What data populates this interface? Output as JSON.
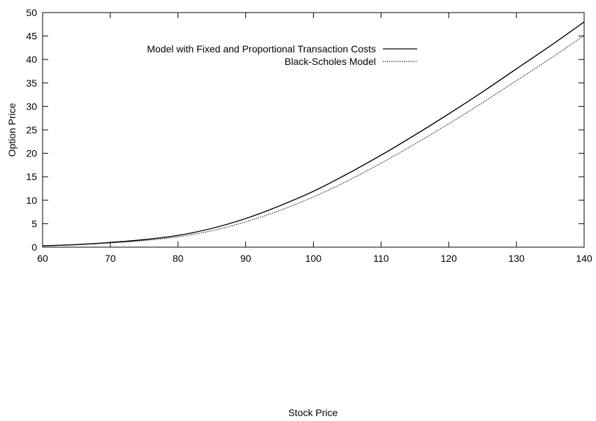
{
  "chart_data": {
    "type": "line",
    "xlabel": "Stock Price",
    "ylabel": "Option Price",
    "xlim": [
      60,
      140
    ],
    "ylim": [
      0,
      50
    ],
    "xticks": [
      60,
      70,
      80,
      90,
      100,
      110,
      120,
      130,
      140
    ],
    "yticks": [
      0,
      5,
      10,
      15,
      20,
      25,
      30,
      35,
      40,
      45,
      50
    ],
    "grid": false,
    "legend_position": "top-right",
    "series": [
      {
        "name": "Model with Fixed and Proportional Transaction Costs",
        "style": "solid",
        "color": "#000000",
        "x": [
          60,
          65,
          70,
          75,
          80,
          85,
          90,
          95,
          100,
          105,
          110,
          115,
          120,
          125,
          130,
          135,
          140
        ],
        "y": [
          0.3,
          0.55,
          1.0,
          1.6,
          2.5,
          4.0,
          6.1,
          8.8,
          11.9,
          15.6,
          19.6,
          23.9,
          28.4,
          33.1,
          38.0,
          42.9,
          48.0
        ]
      },
      {
        "name": "Black-Scholes Model",
        "style": "dotted",
        "color": "#000000",
        "x": [
          60,
          65,
          70,
          75,
          80,
          85,
          90,
          95,
          100,
          105,
          110,
          115,
          120,
          125,
          130,
          135,
          140
        ],
        "y": [
          0.25,
          0.5,
          0.9,
          1.4,
          2.2,
          3.5,
          5.4,
          7.8,
          10.7,
          14.1,
          17.9,
          22.0,
          26.3,
          30.8,
          35.5,
          40.2,
          45.1
        ]
      }
    ]
  }
}
